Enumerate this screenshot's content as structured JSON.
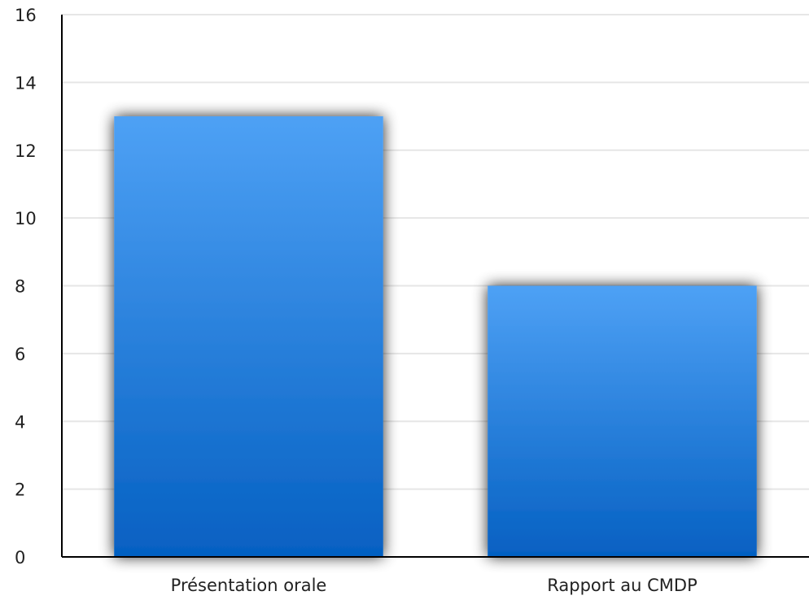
{
  "chart_data": {
    "type": "bar",
    "title": "",
    "xlabel": "",
    "ylabel": "",
    "categories": [
      "Présentation orale",
      "Rapport au CMDP"
    ],
    "values": [
      13,
      8
    ],
    "ylim": [
      0,
      16
    ],
    "yticks": [
      0,
      2,
      4,
      6,
      8,
      10,
      12,
      14,
      16
    ],
    "grid": true,
    "legend": "none",
    "colors": {
      "bar_top": "#4ea1f5",
      "bar_bottom": "#0560c2",
      "grid": "#e6e6e6",
      "axis": "#000000",
      "shadow": "#000000"
    }
  }
}
